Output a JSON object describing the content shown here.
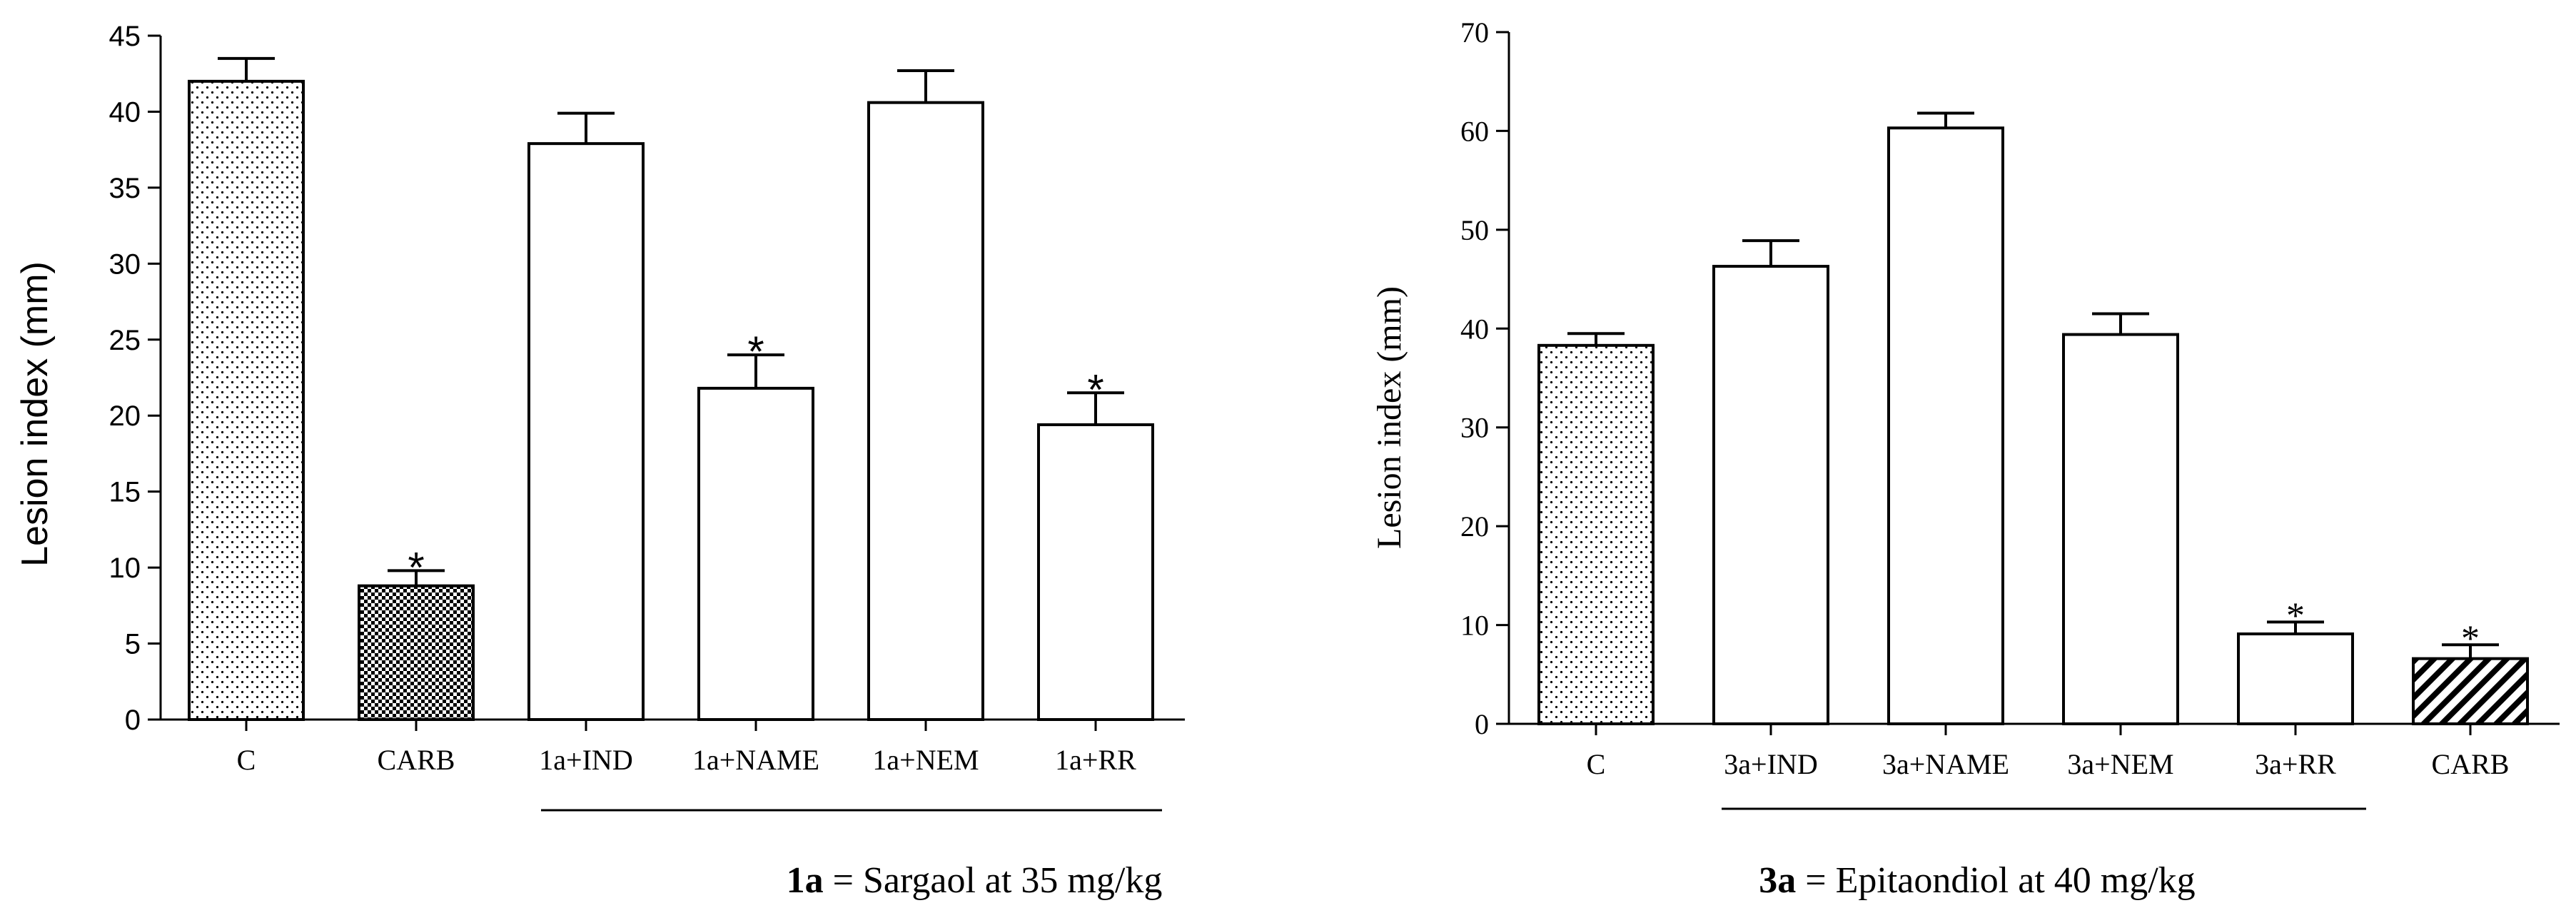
{
  "chart_data": [
    {
      "type": "bar",
      "title": "",
      "xlabel": "",
      "ylabel": "Lesion index (mm)",
      "ylim": [
        0,
        45
      ],
      "yticks": [
        0,
        5,
        10,
        15,
        20,
        25,
        30,
        35,
        40,
        45
      ],
      "categories": [
        "C",
        "CARB",
        "1a+IND",
        "1a+NAME",
        "1a+NEM",
        "1a+RR"
      ],
      "values": [
        42,
        8.8,
        37.9,
        21.8,
        40.6,
        19.4
      ],
      "errors": [
        1.5,
        1.0,
        2.0,
        2.2,
        2.1,
        2.1
      ],
      "patterns": [
        "dots",
        "checker",
        "none",
        "none",
        "none",
        "none"
      ],
      "significant": [
        false,
        true,
        false,
        true,
        false,
        true
      ],
      "significance_marker": "*",
      "caption_bold": "1a",
      "caption_text": " = Sargaol at 35 mg/kg"
    },
    {
      "type": "bar",
      "title": "",
      "xlabel": "",
      "ylabel": "Lesion index (mm)",
      "ylim": [
        0,
        70
      ],
      "yticks": [
        0,
        10,
        20,
        30,
        40,
        50,
        60,
        70
      ],
      "categories": [
        "C",
        "3a+IND",
        "3a+NAME",
        "3a+NEM",
        "3a+RR",
        "CARB"
      ],
      "values": [
        38.3,
        46.3,
        60.3,
        39.4,
        9.1,
        6.6
      ],
      "errors": [
        1.2,
        2.6,
        1.5,
        2.1,
        1.2,
        1.4
      ],
      "patterns": [
        "dots",
        "none",
        "none",
        "none",
        "none",
        "hatch"
      ],
      "significant": [
        false,
        false,
        false,
        false,
        true,
        true
      ],
      "significance_marker": "*",
      "caption_bold": "3a",
      "caption_text": " = Epitaondiol at 40 mg/kg"
    }
  ]
}
